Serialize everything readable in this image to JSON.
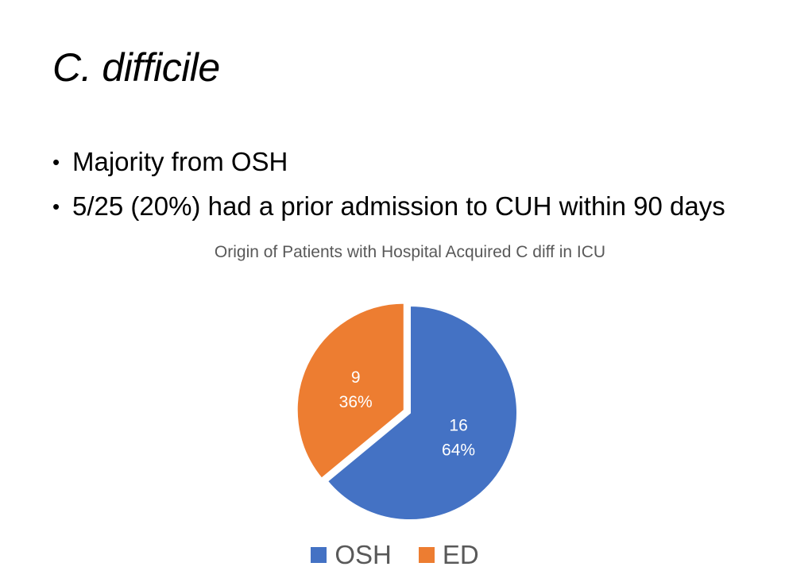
{
  "slide": {
    "title": "C. difficile",
    "bullets": [
      "Majority from OSH",
      "5/25 (20%) had a prior admission to CUH within 90 days"
    ]
  },
  "chart_data": {
    "type": "pie",
    "title": "Origin of Patients with Hospital Acquired C diff in ICU",
    "categories": [
      "OSH",
      "ED"
    ],
    "values": [
      16,
      9
    ],
    "percent_labels": [
      "64%",
      "36%"
    ],
    "colors": [
      "#4472C4",
      "#ED7D31"
    ],
    "exploded": "ED",
    "legend": [
      "OSH",
      "ED"
    ],
    "legend_position": "bottom"
  }
}
